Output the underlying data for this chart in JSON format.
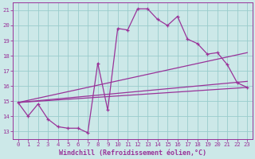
{
  "xlabel": "Windchill (Refroidissement éolien,°C)",
  "bg_color": "#cce8e8",
  "line_color": "#993399",
  "grid_color": "#99cccc",
  "xlim": [
    -0.5,
    23.5
  ],
  "ylim": [
    12.5,
    21.5
  ],
  "xticks": [
    0,
    1,
    2,
    3,
    4,
    5,
    6,
    7,
    8,
    9,
    10,
    11,
    12,
    13,
    14,
    15,
    16,
    17,
    18,
    19,
    20,
    21,
    22,
    23
  ],
  "yticks": [
    13,
    14,
    15,
    16,
    17,
    18,
    19,
    20,
    21
  ],
  "line1_x": [
    0,
    1,
    2,
    3,
    4,
    5,
    6,
    7,
    8,
    9,
    10,
    11,
    12,
    13,
    14,
    15,
    16,
    17,
    18,
    19,
    20,
    21,
    22,
    23
  ],
  "line1_y": [
    14.9,
    14.0,
    14.8,
    13.8,
    13.3,
    13.2,
    13.2,
    12.9,
    17.5,
    14.4,
    19.8,
    19.7,
    21.1,
    21.1,
    20.4,
    20.0,
    20.6,
    19.1,
    18.8,
    18.1,
    18.2,
    17.4,
    16.2,
    15.9
  ],
  "line2_x": [
    0,
    23
  ],
  "line2_y": [
    14.9,
    15.9
  ],
  "line3_x": [
    0,
    23
  ],
  "line3_y": [
    14.9,
    16.3
  ],
  "line4_x": [
    0,
    23
  ],
  "line4_y": [
    14.9,
    18.2
  ],
  "xlabel_fontsize": 6,
  "tick_fontsize": 5.2
}
